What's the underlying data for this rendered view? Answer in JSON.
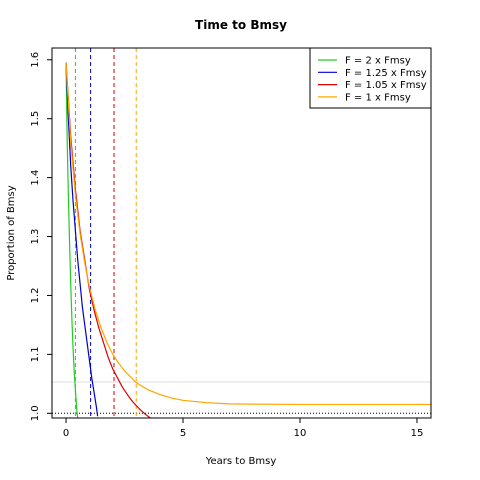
{
  "chart_data": {
    "type": "line",
    "title": "Time to Bmsy",
    "xlabel": "Years to Bmsy",
    "ylabel": "Proportion of Bmsy",
    "xlim": [
      -0.6,
      15.6
    ],
    "ylim": [
      0.992,
      1.62
    ],
    "x_ticks": [
      0,
      5,
      10,
      15
    ],
    "y_ticks": [
      1.0,
      1.1,
      1.2,
      1.3,
      1.4,
      1.5,
      1.6
    ],
    "grid": false,
    "legend_position": "top-right",
    "legend": [
      "F = 2 x Fmsy",
      "F = 1.25 x Fmsy",
      "F = 1.05 x Fmsy",
      "F = 1 x Fmsy"
    ],
    "series": [
      {
        "name": "F = 2 x Fmsy",
        "color": "#22cc22",
        "x": [
          0,
          0.05,
          0.1,
          0.15,
          0.2,
          0.25,
          0.3,
          0.35,
          0.4,
          0.45,
          0.5
        ],
        "y": [
          1.595,
          1.46,
          1.37,
          1.29,
          1.22,
          1.16,
          1.11,
          1.07,
          1.04,
          1.01,
          0.99
        ]
      },
      {
        "name": "F = 1.25 x Fmsy",
        "color": "#0000cc",
        "x": [
          0,
          0.1,
          0.2,
          0.3,
          0.4,
          0.5,
          0.6,
          0.7,
          0.8,
          0.9,
          1.0,
          1.1,
          1.2,
          1.3,
          1.35
        ],
        "y": [
          1.595,
          1.5,
          1.42,
          1.36,
          1.31,
          1.26,
          1.22,
          1.18,
          1.15,
          1.12,
          1.09,
          1.06,
          1.035,
          1.01,
          0.995
        ]
      },
      {
        "name": "F = 1.05 x Fmsy",
        "color": "#dd0000",
        "x": [
          0,
          0.2,
          0.4,
          0.6,
          0.8,
          1.0,
          1.2,
          1.4,
          1.6,
          1.8,
          2.0,
          2.2,
          2.4,
          2.6,
          2.8,
          3.0,
          3.2,
          3.4,
          3.6
        ],
        "y": [
          1.595,
          1.47,
          1.38,
          1.31,
          1.26,
          1.21,
          1.175,
          1.145,
          1.12,
          1.095,
          1.075,
          1.06,
          1.045,
          1.033,
          1.022,
          1.013,
          1.005,
          0.998,
          0.992
        ]
      },
      {
        "name": "F = 1 x Fmsy",
        "color": "#ffa500",
        "x": [
          0,
          0.2,
          0.4,
          0.6,
          0.8,
          1.0,
          1.25,
          1.5,
          1.75,
          2.0,
          2.25,
          2.5,
          3.0,
          3.5,
          4.0,
          4.5,
          5.0,
          6.0,
          7.0,
          8.0,
          10.0,
          12.0,
          14.0,
          15.6
        ],
        "y": [
          1.595,
          1.46,
          1.37,
          1.305,
          1.255,
          1.215,
          1.175,
          1.145,
          1.12,
          1.1,
          1.085,
          1.072,
          1.052,
          1.04,
          1.032,
          1.026,
          1.022,
          1.018,
          1.016,
          1.0155,
          1.015,
          1.015,
          1.015,
          1.015
        ]
      }
    ],
    "vertical_lines": [
      {
        "x": 0.4,
        "color": "#22cc22"
      },
      {
        "x": 1.05,
        "color": "#0000cc"
      },
      {
        "x": 2.05,
        "color": "#dd0000"
      },
      {
        "x": 3.0,
        "color": "#ffa500"
      }
    ],
    "horizontal_lines": [
      {
        "y": 1.0,
        "color": "#000000",
        "style": "dotted"
      },
      {
        "y": 1.053,
        "color": "#dddddd",
        "style": "solid"
      }
    ]
  }
}
